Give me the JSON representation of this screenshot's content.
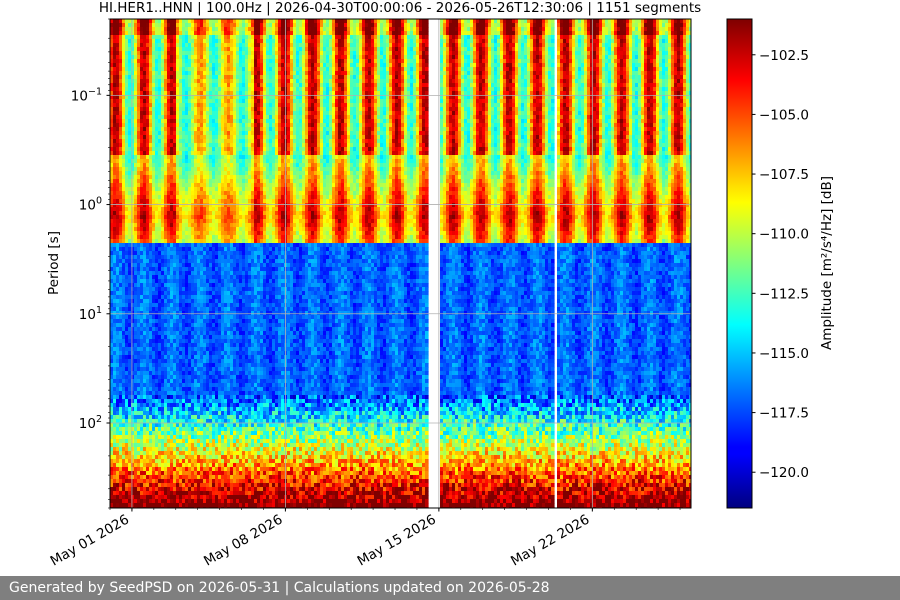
{
  "chart_data": {
    "type": "heatmap",
    "title": "HI.HER1..HNN | 100.0Hz | 2026-04-30T00:00:06 - 2026-05-26T12:30:06 | 1151 segments",
    "x_axis": {
      "type": "date",
      "range": [
        "2026-04-30",
        "2026-05-26"
      ],
      "ticks": [
        {
          "date": "2026-05-01",
          "label": "May 01 2026"
        },
        {
          "date": "2026-05-08",
          "label": "May 08 2026"
        },
        {
          "date": "2026-05-15",
          "label": "May 15 2026"
        },
        {
          "date": "2026-05-22",
          "label": "May 22 2026"
        }
      ]
    },
    "y_axis": {
      "label": "Period [s]",
      "scale": "log",
      "inverted": true,
      "range": [
        0.02,
        600
      ],
      "ticks": [
        {
          "value": 0.1,
          "label": "10",
          "exp": "−1"
        },
        {
          "value": 1,
          "label": "10",
          "exp": "0"
        },
        {
          "value": 10,
          "label": "10",
          "exp": "1"
        },
        {
          "value": 100,
          "label": "10",
          "exp": "2"
        }
      ],
      "grid": true
    },
    "colorbar": {
      "label": "Amplitude [m²/s⁴/Hz] [dB]",
      "colormap": "jet",
      "range": [
        -121.5,
        -101
      ],
      "ticks": [
        -102.5,
        -105.0,
        -107.5,
        -110.0,
        -112.5,
        -115.0,
        -117.5,
        -120.0
      ],
      "tick_labels": [
        "−102.5",
        "−105.0",
        "−107.5",
        "−110.0",
        "−112.5",
        "−115.0",
        "−117.5",
        "−120.0"
      ]
    },
    "gaps": [
      {
        "start": "2026-05-14T11:00",
        "end": "2026-05-15T02:00"
      },
      {
        "start": "2026-05-20T06:00",
        "end": "2026-05-20T09:00"
      }
    ]
  },
  "footer": {
    "text": "Generated by SeedPSD on 2026-05-31 | Calculations updated on 2026-05-28"
  }
}
